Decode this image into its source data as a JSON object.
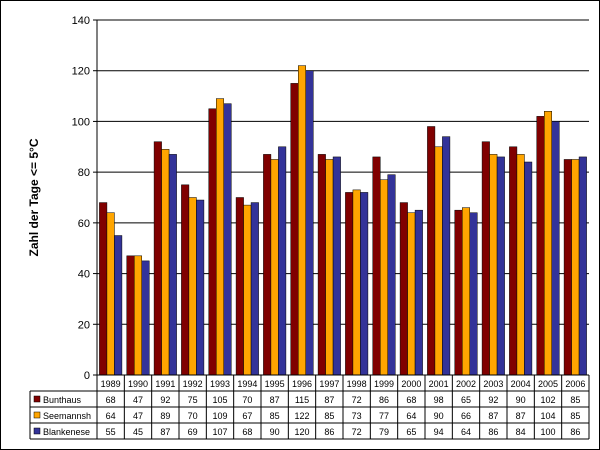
{
  "chart_data": {
    "type": "bar",
    "title": "",
    "xlabel": "",
    "ylabel": "Zahl der Tage <= 5°C",
    "ylim": [
      0,
      140
    ],
    "yticks": [
      0,
      20,
      40,
      60,
      80,
      100,
      120,
      140
    ],
    "grid": true,
    "legend": "data-table-left",
    "categories": [
      "1989",
      "1990",
      "1991",
      "1992",
      "1993",
      "1994",
      "1995",
      "1996",
      "1997",
      "1998",
      "1999",
      "2000",
      "2001",
      "2002",
      "2003",
      "2004",
      "2005",
      "2006"
    ],
    "series": [
      {
        "name": "Bunthaus",
        "color": "#800000",
        "values": [
          68,
          47,
          92,
          75,
          105,
          70,
          87,
          115,
          87,
          72,
          86,
          68,
          98,
          65,
          92,
          90,
          102,
          85
        ]
      },
      {
        "name": "Seemannsh",
        "color": "#FFA500",
        "values": [
          64,
          47,
          89,
          70,
          109,
          67,
          85,
          122,
          85,
          73,
          77,
          64,
          90,
          66,
          87,
          87,
          104,
          85
        ]
      },
      {
        "name": "Blankenese",
        "color": "#333399",
        "values": [
          55,
          45,
          87,
          69,
          107,
          68,
          90,
          120,
          86,
          72,
          79,
          65,
          94,
          64,
          86,
          84,
          100,
          86
        ]
      }
    ]
  }
}
